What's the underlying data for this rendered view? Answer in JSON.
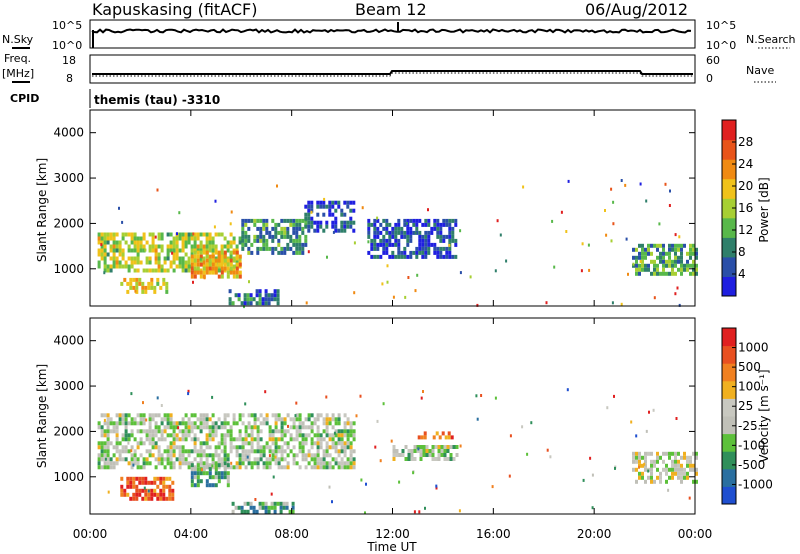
{
  "header": {
    "station": "Kapuskasing (fitACF)",
    "beam": "Beam 12",
    "date": "06/Aug/2012"
  },
  "top_panels": {
    "nsky_label": "N.Sky",
    "nsky_ticks": [
      "10^5",
      "10^0"
    ],
    "nsearch_label": "N.Search",
    "nsearch_ticks": [
      "10^5",
      "10^0"
    ],
    "freq_label": "Freq.",
    "freq_unit": "[MHz]",
    "freq_ticks": [
      "18",
      "8"
    ],
    "nave_label": "Nave",
    "nave_ticks": [
      "60",
      "0"
    ],
    "cpid_label": "CPID",
    "cpid_text": "themis (tau) -3310"
  },
  "colors": {
    "power_scale": [
      "#1f1fe0",
      "#2a4fa8",
      "#2f7f6a",
      "#58b84a",
      "#a7cf33",
      "#f0c21a",
      "#f08a12",
      "#e8541a",
      "#e02020"
    ],
    "velocity_scale": [
      "#1f4fd0",
      "#2a6fa0",
      "#2f8f5a",
      "#5cc03a",
      "#c0c0b8",
      "#c8c8c0",
      "#f0b020",
      "#f08020",
      "#e85020",
      "#e02020"
    ]
  },
  "chart_data": [
    {
      "type": "heatmap",
      "name": "power",
      "ylabel": "Slant Range [km]",
      "yticks": [
        "4000",
        "3000",
        "2000",
        "1000"
      ],
      "ylim": [
        180,
        4500
      ],
      "xlim": [
        0,
        24
      ],
      "colorbar_label": "Power [dB]",
      "colorbar_ticks": [
        "28",
        "24",
        "20",
        "16",
        "12",
        "8",
        "4"
      ],
      "colorbar_range": [
        0,
        32
      ],
      "regions": [
        {
          "t0": 0.3,
          "t1": 6.0,
          "r0": 950,
          "r1": 1800,
          "level": 0.5
        },
        {
          "t0": 1.2,
          "t1": 3.0,
          "r0": 500,
          "r1": 800,
          "level": 0.6
        },
        {
          "t0": 4.0,
          "t1": 6.0,
          "r0": 800,
          "r1": 1400,
          "level": 0.65
        },
        {
          "t0": 6.0,
          "t1": 8.5,
          "r0": 1350,
          "r1": 2100,
          "level": 0.3
        },
        {
          "t0": 8.5,
          "t1": 10.5,
          "r0": 1800,
          "r1": 2500,
          "level": 0.15
        },
        {
          "t0": 11.0,
          "t1": 14.5,
          "r0": 1300,
          "r1": 2100,
          "level": 0.15
        },
        {
          "t0": 5.5,
          "t1": 7.5,
          "r0": 200,
          "r1": 550,
          "level": 0.2
        },
        {
          "t0": 21.5,
          "t1": 24.0,
          "r0": 850,
          "r1": 1550,
          "level": 0.35
        }
      ]
    },
    {
      "type": "heatmap",
      "name": "velocity",
      "ylabel": "Slant Range [km]",
      "yticks": [
        "4000",
        "3000",
        "2000",
        "1000"
      ],
      "ylim": [
        180,
        4500
      ],
      "xlim": [
        0,
        24
      ],
      "xticks": [
        "00:00",
        "04:00",
        "08:00",
        "12:00",
        "16:00",
        "20:00",
        "00:00"
      ],
      "xlabel": "Time UT",
      "colorbar_label": "Velocity [m s⁻¹]",
      "colorbar_ticks": [
        "1000",
        "500",
        "100",
        "25",
        "-25",
        "-100",
        "-500",
        "-1000"
      ],
      "regions": [
        {
          "t0": 0.3,
          "t1": 10.5,
          "r0": 1250,
          "r1": 2400,
          "level": 0.45
        },
        {
          "t0": 1.2,
          "t1": 3.3,
          "r0": 500,
          "r1": 1000,
          "level": 0.85
        },
        {
          "t0": 4.0,
          "t1": 5.5,
          "r0": 800,
          "r1": 1300,
          "level": 0.3
        },
        {
          "t0": 13.0,
          "t1": 14.5,
          "r0": 1850,
          "r1": 2000,
          "level": 0.75
        },
        {
          "t0": 12.0,
          "t1": 14.5,
          "r0": 1400,
          "r1": 1700,
          "level": 0.45
        },
        {
          "t0": 5.5,
          "t1": 8.0,
          "r0": 200,
          "r1": 450,
          "level": 0.3
        },
        {
          "t0": 21.5,
          "t1": 24.0,
          "r0": 850,
          "r1": 1550,
          "level": 0.5
        }
      ]
    }
  ]
}
